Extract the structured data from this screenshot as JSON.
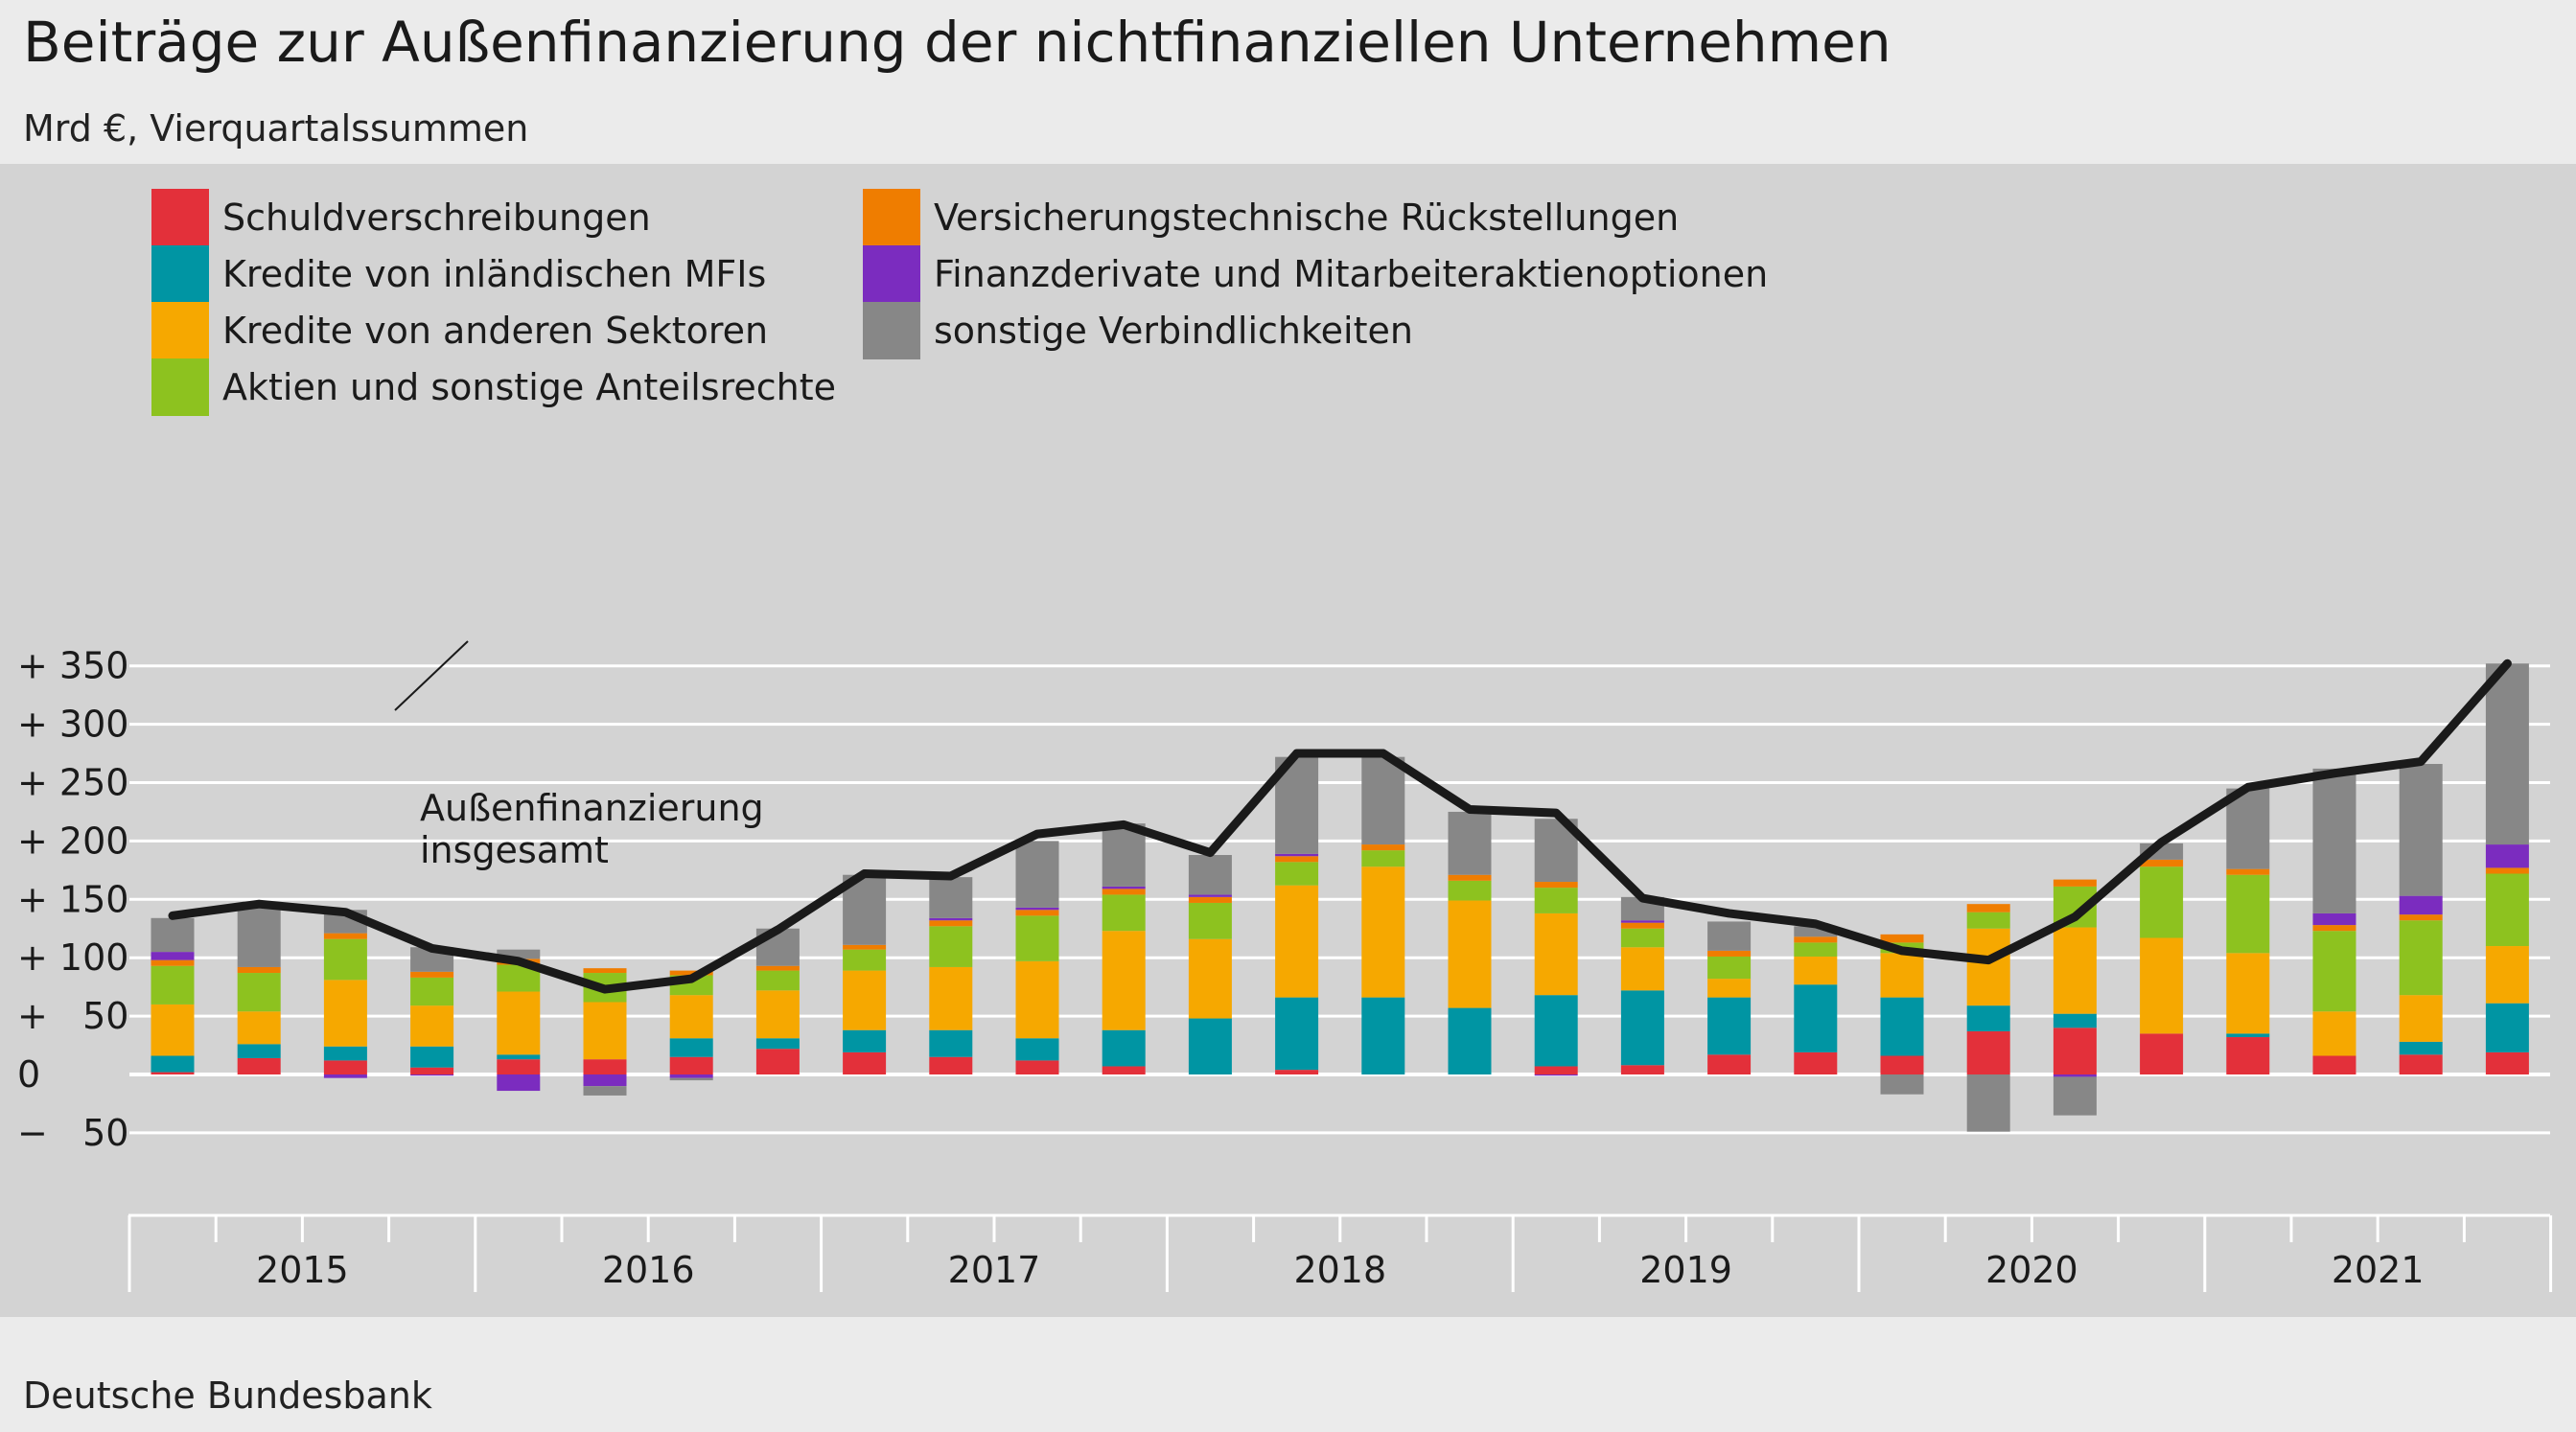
{
  "title": "Beiträge zur Außenfinanzierung der nichtfinanziellen Unternehmen",
  "subtitle": "Mrd €, Vierquartalssummen",
  "source": "Deutsche Bundesbank",
  "annotation": [
    "Außenfinanzierung",
    "insgesamt"
  ],
  "chart_data": {
    "type": "bar",
    "stacked": true,
    "title": "Beiträge zur Außenfinanzierung der nichtfinanziellen Unternehmen",
    "ylabel": "Mrd €, Vierquartalssummen",
    "ylim": [
      -50,
      350
    ],
    "y_ticks": [
      350,
      300,
      250,
      200,
      150,
      100,
      50,
      0,
      -50
    ],
    "y_tick_labels": [
      "+ 350",
      "+ 300",
      "+ 250",
      "+ 200",
      "+ 150",
      "+ 100",
      "+   50",
      "0",
      "−   50"
    ],
    "grid": true,
    "legend_position": "top-left",
    "years": [
      "2015",
      "2016",
      "2017",
      "2018",
      "2019",
      "2020",
      "2021"
    ],
    "categories": [
      "2015 Q1",
      "2015 Q2",
      "2015 Q3",
      "2015 Q4",
      "2016 Q1",
      "2016 Q2",
      "2016 Q3",
      "2016 Q4",
      "2017 Q1",
      "2017 Q2",
      "2017 Q3",
      "2017 Q4",
      "2018 Q1",
      "2018 Q2",
      "2018 Q3",
      "2018 Q4",
      "2019 Q1",
      "2019 Q2",
      "2019 Q3",
      "2019 Q4",
      "2020 Q1",
      "2020 Q2",
      "2020 Q3",
      "2020 Q4",
      "2021 Q1",
      "2021 Q2",
      "2021 Q3",
      "2021 Q4"
    ],
    "series": [
      {
        "name": "Schuldverschreibungen",
        "color": "#e3303a",
        "values": [
          2,
          14,
          12,
          6,
          13,
          13,
          15,
          22,
          19,
          15,
          12,
          7,
          0,
          4,
          0,
          0,
          7,
          8,
          17,
          19,
          16,
          37,
          40,
          35,
          32,
          16,
          17,
          19
        ]
      },
      {
        "name": "Kredite von inländischen MFIs",
        "color": "#0095a3",
        "values": [
          14,
          12,
          12,
          18,
          4,
          0,
          16,
          9,
          19,
          23,
          19,
          31,
          48,
          62,
          66,
          57,
          61,
          64,
          49,
          58,
          50,
          22,
          12,
          0,
          3,
          0,
          11,
          42
        ]
      },
      {
        "name": "Kredite von anderen Sektoren",
        "color": "#f6a800",
        "values": [
          44,
          28,
          57,
          35,
          54,
          49,
          37,
          41,
          51,
          54,
          66,
          85,
          68,
          96,
          112,
          92,
          70,
          37,
          16,
          24,
          38,
          66,
          74,
          82,
          69,
          38,
          40,
          49
        ]
      },
      {
        "name": "Aktien und sonstige Anteilsrechte",
        "color": "#8dc21f",
        "values": [
          33,
          33,
          35,
          24,
          23,
          25,
          17,
          17,
          18,
          35,
          39,
          31,
          31,
          20,
          14,
          17,
          22,
          16,
          19,
          12,
          9,
          14,
          35,
          61,
          67,
          69,
          64,
          62
        ]
      },
      {
        "name": "Versicherungstechnische Rückstellungen",
        "color": "#ef7d00",
        "values": [
          5,
          5,
          5,
          5,
          5,
          4,
          4,
          4,
          4,
          5,
          5,
          5,
          5,
          5,
          5,
          5,
          5,
          5,
          5,
          5,
          7,
          7,
          6,
          6,
          5,
          5,
          5,
          5
        ]
      },
      {
        "name": "Finanzderivate und Mitarbeiteraktienoptionen",
        "color": "#7b2cbf",
        "values": [
          7,
          0,
          -3,
          -1,
          -14,
          -10,
          -3,
          0,
          0,
          2,
          2,
          2,
          2,
          2,
          0,
          0,
          -1,
          2,
          0,
          0,
          0,
          0,
          -2,
          0,
          0,
          10,
          16,
          20
        ]
      },
      {
        "name": "sonstige Verbindlichkeiten",
        "color": "#878787",
        "values": [
          29,
          52,
          20,
          21,
          8,
          -8,
          -2,
          32,
          60,
          35,
          57,
          54,
          34,
          83,
          75,
          54,
          54,
          20,
          25,
          9,
          -17,
          -49,
          -33,
          14,
          69,
          124,
          113,
          155
        ]
      }
    ],
    "line": {
      "name": "Außenfinanzierung insgesamt",
      "color": "#1a1a1a",
      "values": [
        136,
        146,
        139,
        108,
        97,
        73,
        82,
        124,
        172,
        170,
        206,
        214,
        190,
        275,
        275,
        227,
        224,
        151,
        138,
        129,
        106,
        98,
        135,
        199,
        246,
        258,
        268,
        352
      ]
    }
  }
}
